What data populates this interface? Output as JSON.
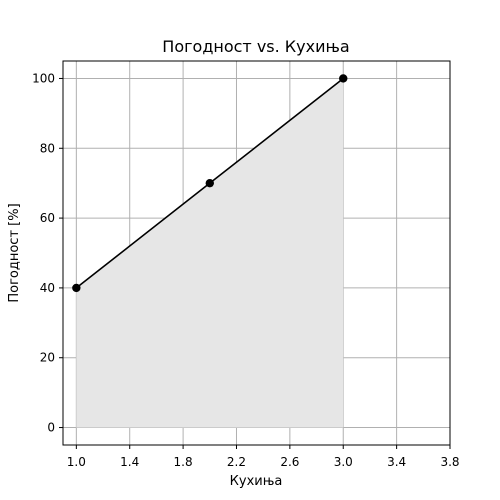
{
  "chart_data": {
    "type": "line",
    "title": "Погодност vs. Кухиња",
    "xlabel": "Кухиња",
    "ylabel": "Погодност [%]",
    "x": [
      1.0,
      2.0,
      3.0
    ],
    "series": [
      {
        "values": [
          40,
          70,
          100
        ]
      }
    ],
    "xlim": [
      0.9,
      3.8
    ],
    "ylim": [
      -5,
      105
    ],
    "xticks": [
      1.0,
      1.4,
      1.8,
      2.2,
      2.6,
      3.0,
      3.4,
      3.8
    ],
    "xtick_labels": [
      "1.0",
      "1.4",
      "1.8",
      "2.2",
      "2.6",
      "3.0",
      "3.4",
      "3.8"
    ],
    "yticks": [
      0,
      20,
      40,
      60,
      80,
      100
    ],
    "ytick_labels": [
      "0",
      "20",
      "40",
      "60",
      "80",
      "100"
    ],
    "grid": true,
    "area_fill": true,
    "colors": {
      "line": "#000000",
      "marker": "#000000",
      "fill": "#e6e6e6",
      "grid": "#b0b0b0"
    }
  }
}
